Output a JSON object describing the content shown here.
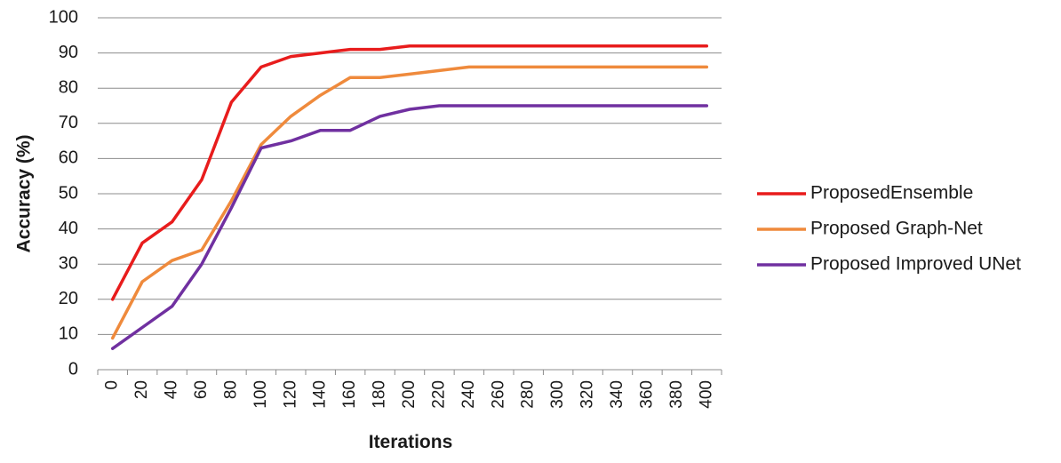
{
  "chart_data": {
    "type": "line",
    "title": "",
    "xlabel": "Iterations",
    "ylabel": "Accuracy (%)",
    "ylim": [
      0,
      100
    ],
    "yticks": [
      "0",
      "10",
      "20",
      "30",
      "40",
      "50",
      "60",
      "70",
      "80",
      "90",
      "100"
    ],
    "x": [
      "0",
      "20",
      "40",
      "60",
      "80",
      "100",
      "120",
      "140",
      "160",
      "180",
      "200",
      "220",
      "240",
      "260",
      "280",
      "300",
      "320",
      "340",
      "360",
      "380",
      "400"
    ],
    "grid": "horizontal",
    "legend_position": "right",
    "series": [
      {
        "name": "ProposedEnsemble",
        "color": "#e81c1c",
        "values": [
          20,
          36,
          42,
          54,
          76,
          86,
          89,
          90,
          91,
          91,
          92,
          92,
          92,
          92,
          92,
          92,
          92,
          92,
          92,
          92,
          92
        ]
      },
      {
        "name": "Proposed Graph-Net",
        "color": "#ef8a3c",
        "values": [
          9,
          25,
          31,
          34,
          48,
          64,
          72,
          78,
          83,
          83,
          84,
          85,
          86,
          86,
          86,
          86,
          86,
          86,
          86,
          86,
          86
        ]
      },
      {
        "name": "Proposed Improved UNet",
        "color": "#7030a0",
        "values": [
          6,
          12,
          18,
          30,
          46,
          63,
          65,
          68,
          68,
          72,
          74,
          75,
          75,
          75,
          75,
          75,
          75,
          75,
          75,
          75,
          75
        ]
      }
    ]
  }
}
